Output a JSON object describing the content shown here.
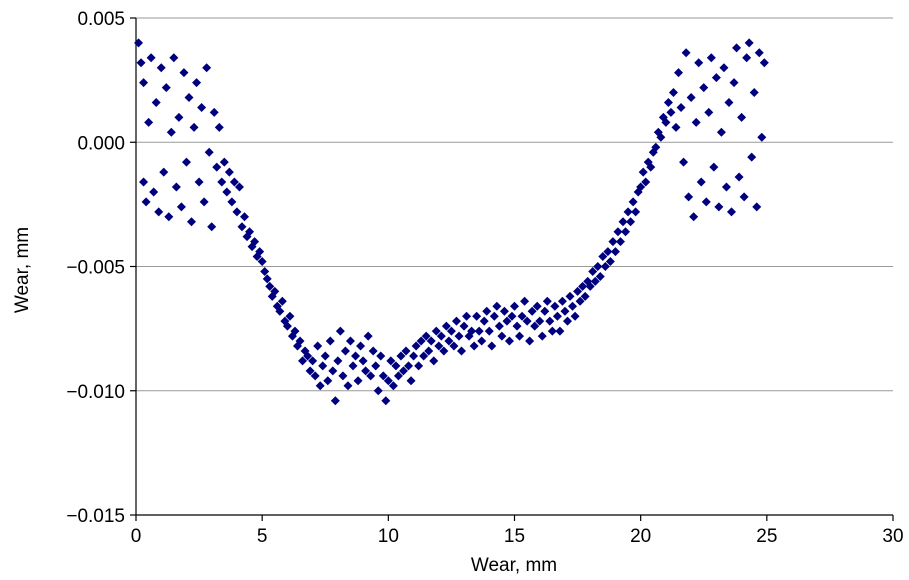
{
  "chart_data": {
    "type": "scatter",
    "title": "",
    "xlabel": "Wear, mm",
    "ylabel": "Wear, mm",
    "xlim": [
      0,
      30
    ],
    "ylim": [
      -0.015,
      0.005
    ],
    "x_ticks": [
      0,
      5,
      10,
      15,
      20,
      25,
      30
    ],
    "x_tick_labels": [
      "0",
      "5",
      "10",
      "15",
      "20",
      "25",
      "30"
    ],
    "y_ticks": [
      0.005,
      0.0,
      -0.005,
      -0.01,
      -0.015
    ],
    "y_tick_labels": [
      "0.005",
      "0.000",
      "−0.005",
      "−0.010",
      "−0.015"
    ],
    "grid": "horizontal major gridlines",
    "legend": "none",
    "marker": "diamond",
    "color": "#00007f",
    "series": [
      {
        "points": [
          [
            0.1,
            0.004
          ],
          [
            0.2,
            0.0032
          ],
          [
            0.3,
            0.0024
          ],
          [
            0.3,
            -0.0016
          ],
          [
            0.4,
            -0.0024
          ],
          [
            0.5,
            0.0008
          ],
          [
            0.6,
            0.0034
          ],
          [
            0.7,
            -0.002
          ],
          [
            0.8,
            0.0016
          ],
          [
            0.9,
            -0.0028
          ],
          [
            1.0,
            0.003
          ],
          [
            1.1,
            -0.0012
          ],
          [
            1.2,
            0.0022
          ],
          [
            1.3,
            -0.003
          ],
          [
            1.4,
            0.0004
          ],
          [
            1.5,
            0.0034
          ],
          [
            1.6,
            -0.0018
          ],
          [
            1.7,
            0.001
          ],
          [
            1.8,
            -0.0026
          ],
          [
            1.9,
            0.0028
          ],
          [
            2.0,
            -0.0008
          ],
          [
            2.1,
            0.0018
          ],
          [
            2.2,
            -0.0032
          ],
          [
            2.3,
            0.0006
          ],
          [
            2.4,
            0.0024
          ],
          [
            2.5,
            -0.0016
          ],
          [
            2.6,
            0.0014
          ],
          [
            2.7,
            -0.0024
          ],
          [
            2.8,
            0.003
          ],
          [
            2.9,
            -0.0004
          ],
          [
            3.0,
            -0.0034
          ],
          [
            3.1,
            0.0012
          ],
          [
            3.2,
            -0.001
          ],
          [
            3.3,
            0.0006
          ],
          [
            3.4,
            -0.0016
          ],
          [
            3.5,
            -0.0008
          ],
          [
            3.6,
            -0.002
          ],
          [
            3.7,
            -0.0012
          ],
          [
            3.8,
            -0.0024
          ],
          [
            3.9,
            -0.0016
          ],
          [
            4.0,
            -0.0028
          ],
          [
            4.1,
            -0.0018
          ],
          [
            4.2,
            -0.0034
          ],
          [
            4.3,
            -0.003
          ],
          [
            4.4,
            -0.0038
          ],
          [
            4.5,
            -0.0036
          ],
          [
            4.6,
            -0.0042
          ],
          [
            4.7,
            -0.004
          ],
          [
            4.8,
            -0.0046
          ],
          [
            4.9,
            -0.0044
          ],
          [
            5.0,
            -0.0048
          ],
          [
            5.1,
            -0.0052
          ],
          [
            5.2,
            -0.0055
          ],
          [
            5.3,
            -0.0058
          ],
          [
            5.4,
            -0.0062
          ],
          [
            5.5,
            -0.006
          ],
          [
            5.6,
            -0.0066
          ],
          [
            5.7,
            -0.0068
          ],
          [
            5.8,
            -0.0064
          ],
          [
            5.9,
            -0.0072
          ],
          [
            6.0,
            -0.0074
          ],
          [
            6.1,
            -0.007
          ],
          [
            6.2,
            -0.0078
          ],
          [
            6.3,
            -0.0076
          ],
          [
            6.4,
            -0.0082
          ],
          [
            6.5,
            -0.008
          ],
          [
            6.6,
            -0.0088
          ],
          [
            6.7,
            -0.0084
          ],
          [
            6.8,
            -0.0086
          ],
          [
            6.9,
            -0.0092
          ],
          [
            7.0,
            -0.0088
          ],
          [
            7.1,
            -0.0094
          ],
          [
            7.2,
            -0.0082
          ],
          [
            7.3,
            -0.0098
          ],
          [
            7.4,
            -0.009
          ],
          [
            7.5,
            -0.0086
          ],
          [
            7.6,
            -0.0096
          ],
          [
            7.7,
            -0.008
          ],
          [
            7.8,
            -0.0092
          ],
          [
            7.9,
            -0.0104
          ],
          [
            8.0,
            -0.0088
          ],
          [
            8.1,
            -0.0076
          ],
          [
            8.2,
            -0.0094
          ],
          [
            8.3,
            -0.0084
          ],
          [
            8.4,
            -0.0098
          ],
          [
            8.5,
            -0.008
          ],
          [
            8.6,
            -0.009
          ],
          [
            8.7,
            -0.0086
          ],
          [
            8.8,
            -0.0096
          ],
          [
            8.9,
            -0.0082
          ],
          [
            9.0,
            -0.0088
          ],
          [
            9.1,
            -0.0092
          ],
          [
            9.2,
            -0.0078
          ],
          [
            9.3,
            -0.0094
          ],
          [
            9.4,
            -0.0084
          ],
          [
            9.5,
            -0.009
          ],
          [
            9.6,
            -0.01
          ],
          [
            9.7,
            -0.0086
          ],
          [
            9.8,
            -0.0094
          ],
          [
            9.9,
            -0.0104
          ],
          [
            10.0,
            -0.0096
          ],
          [
            10.1,
            -0.0088
          ],
          [
            10.2,
            -0.0098
          ],
          [
            10.3,
            -0.009
          ],
          [
            10.4,
            -0.0094
          ],
          [
            10.5,
            -0.0086
          ],
          [
            10.6,
            -0.0092
          ],
          [
            10.7,
            -0.0084
          ],
          [
            10.8,
            -0.009
          ],
          [
            10.9,
            -0.0096
          ],
          [
            11.0,
            -0.0086
          ],
          [
            11.1,
            -0.0082
          ],
          [
            11.2,
            -0.009
          ],
          [
            11.3,
            -0.008
          ],
          [
            11.4,
            -0.0086
          ],
          [
            11.5,
            -0.0078
          ],
          [
            11.6,
            -0.0084
          ],
          [
            11.7,
            -0.008
          ],
          [
            11.8,
            -0.0088
          ],
          [
            11.9,
            -0.0076
          ],
          [
            12.0,
            -0.0082
          ],
          [
            12.1,
            -0.0078
          ],
          [
            12.2,
            -0.0084
          ],
          [
            12.3,
            -0.0074
          ],
          [
            12.4,
            -0.008
          ],
          [
            12.5,
            -0.0076
          ],
          [
            12.6,
            -0.0082
          ],
          [
            12.7,
            -0.0072
          ],
          [
            12.8,
            -0.0078
          ],
          [
            12.9,
            -0.0084
          ],
          [
            13.0,
            -0.0074
          ],
          [
            13.1,
            -0.007
          ],
          [
            13.2,
            -0.0078
          ],
          [
            13.3,
            -0.0076
          ],
          [
            13.4,
            -0.0082
          ],
          [
            13.5,
            -0.007
          ],
          [
            13.6,
            -0.0076
          ],
          [
            13.7,
            -0.008
          ],
          [
            13.8,
            -0.0072
          ],
          [
            13.9,
            -0.0068
          ],
          [
            14.0,
            -0.0076
          ],
          [
            14.1,
            -0.0082
          ],
          [
            14.2,
            -0.007
          ],
          [
            14.3,
            -0.0066
          ],
          [
            14.4,
            -0.0074
          ],
          [
            14.5,
            -0.0078
          ],
          [
            14.6,
            -0.0068
          ],
          [
            14.7,
            -0.0072
          ],
          [
            14.8,
            -0.008
          ],
          [
            14.9,
            -0.007
          ],
          [
            15.0,
            -0.0066
          ],
          [
            15.1,
            -0.0074
          ],
          [
            15.2,
            -0.0078
          ],
          [
            15.3,
            -0.007
          ],
          [
            15.4,
            -0.0064
          ],
          [
            15.5,
            -0.0072
          ],
          [
            15.6,
            -0.008
          ],
          [
            15.7,
            -0.0068
          ],
          [
            15.8,
            -0.0074
          ],
          [
            15.9,
            -0.0066
          ],
          [
            16.0,
            -0.0072
          ],
          [
            16.1,
            -0.0078
          ],
          [
            16.2,
            -0.0068
          ],
          [
            16.3,
            -0.0064
          ],
          [
            16.4,
            -0.0072
          ],
          [
            16.5,
            -0.0076
          ],
          [
            16.6,
            -0.0066
          ],
          [
            16.7,
            -0.007
          ],
          [
            16.8,
            -0.0076
          ],
          [
            16.9,
            -0.0064
          ],
          [
            17.0,
            -0.0068
          ],
          [
            17.1,
            -0.0072
          ],
          [
            17.2,
            -0.0062
          ],
          [
            17.3,
            -0.0066
          ],
          [
            17.4,
            -0.007
          ],
          [
            17.5,
            -0.006
          ],
          [
            17.6,
            -0.0064
          ],
          [
            17.7,
            -0.0058
          ],
          [
            17.8,
            -0.0062
          ],
          [
            17.9,
            -0.0056
          ],
          [
            18.0,
            -0.0058
          ],
          [
            18.1,
            -0.0052
          ],
          [
            18.2,
            -0.0056
          ],
          [
            18.3,
            -0.005
          ],
          [
            18.4,
            -0.0054
          ],
          [
            18.5,
            -0.0046
          ],
          [
            18.6,
            -0.005
          ],
          [
            18.7,
            -0.0044
          ],
          [
            18.8,
            -0.0048
          ],
          [
            18.9,
            -0.004
          ],
          [
            19.0,
            -0.0044
          ],
          [
            19.1,
            -0.0036
          ],
          [
            19.2,
            -0.004
          ],
          [
            19.3,
            -0.0032
          ],
          [
            19.4,
            -0.0036
          ],
          [
            19.5,
            -0.0028
          ],
          [
            19.6,
            -0.0032
          ],
          [
            19.7,
            -0.0024
          ],
          [
            19.8,
            -0.0028
          ],
          [
            19.9,
            -0.002
          ],
          [
            20.0,
            -0.0018
          ],
          [
            20.1,
            -0.0012
          ],
          [
            20.2,
            -0.0016
          ],
          [
            20.3,
            -0.0008
          ],
          [
            20.4,
            -0.001
          ],
          [
            20.5,
            -0.0004
          ],
          [
            20.6,
            -0.0002
          ],
          [
            20.7,
            0.0004
          ],
          [
            20.8,
            0.0002
          ],
          [
            20.9,
            0.001
          ],
          [
            21.0,
            0.0008
          ],
          [
            21.1,
            0.0016
          ],
          [
            21.2,
            0.0012
          ],
          [
            21.3,
            0.002
          ],
          [
            21.4,
            0.0006
          ],
          [
            21.5,
            0.0028
          ],
          [
            21.6,
            0.0014
          ],
          [
            21.7,
            -0.0008
          ],
          [
            21.8,
            0.0036
          ],
          [
            21.9,
            -0.0022
          ],
          [
            22.0,
            0.0018
          ],
          [
            22.1,
            -0.003
          ],
          [
            22.2,
            0.0008
          ],
          [
            22.3,
            0.0032
          ],
          [
            22.4,
            -0.0016
          ],
          [
            22.5,
            0.0022
          ],
          [
            22.6,
            -0.0024
          ],
          [
            22.7,
            0.0012
          ],
          [
            22.8,
            0.0034
          ],
          [
            22.9,
            -0.001
          ],
          [
            23.0,
            0.0026
          ],
          [
            23.1,
            -0.0026
          ],
          [
            23.2,
            0.0004
          ],
          [
            23.3,
            0.003
          ],
          [
            23.4,
            -0.0018
          ],
          [
            23.5,
            0.0016
          ],
          [
            23.6,
            -0.0028
          ],
          [
            23.7,
            0.0024
          ],
          [
            23.8,
            0.0038
          ],
          [
            23.9,
            -0.0014
          ],
          [
            24.0,
            0.001
          ],
          [
            24.1,
            -0.0022
          ],
          [
            24.2,
            0.0034
          ],
          [
            24.3,
            0.004
          ],
          [
            24.4,
            -0.0006
          ],
          [
            24.5,
            0.002
          ],
          [
            24.6,
            -0.0026
          ],
          [
            24.7,
            0.0036
          ],
          [
            24.8,
            0.0002
          ],
          [
            24.9,
            0.0032
          ]
        ]
      }
    ]
  }
}
